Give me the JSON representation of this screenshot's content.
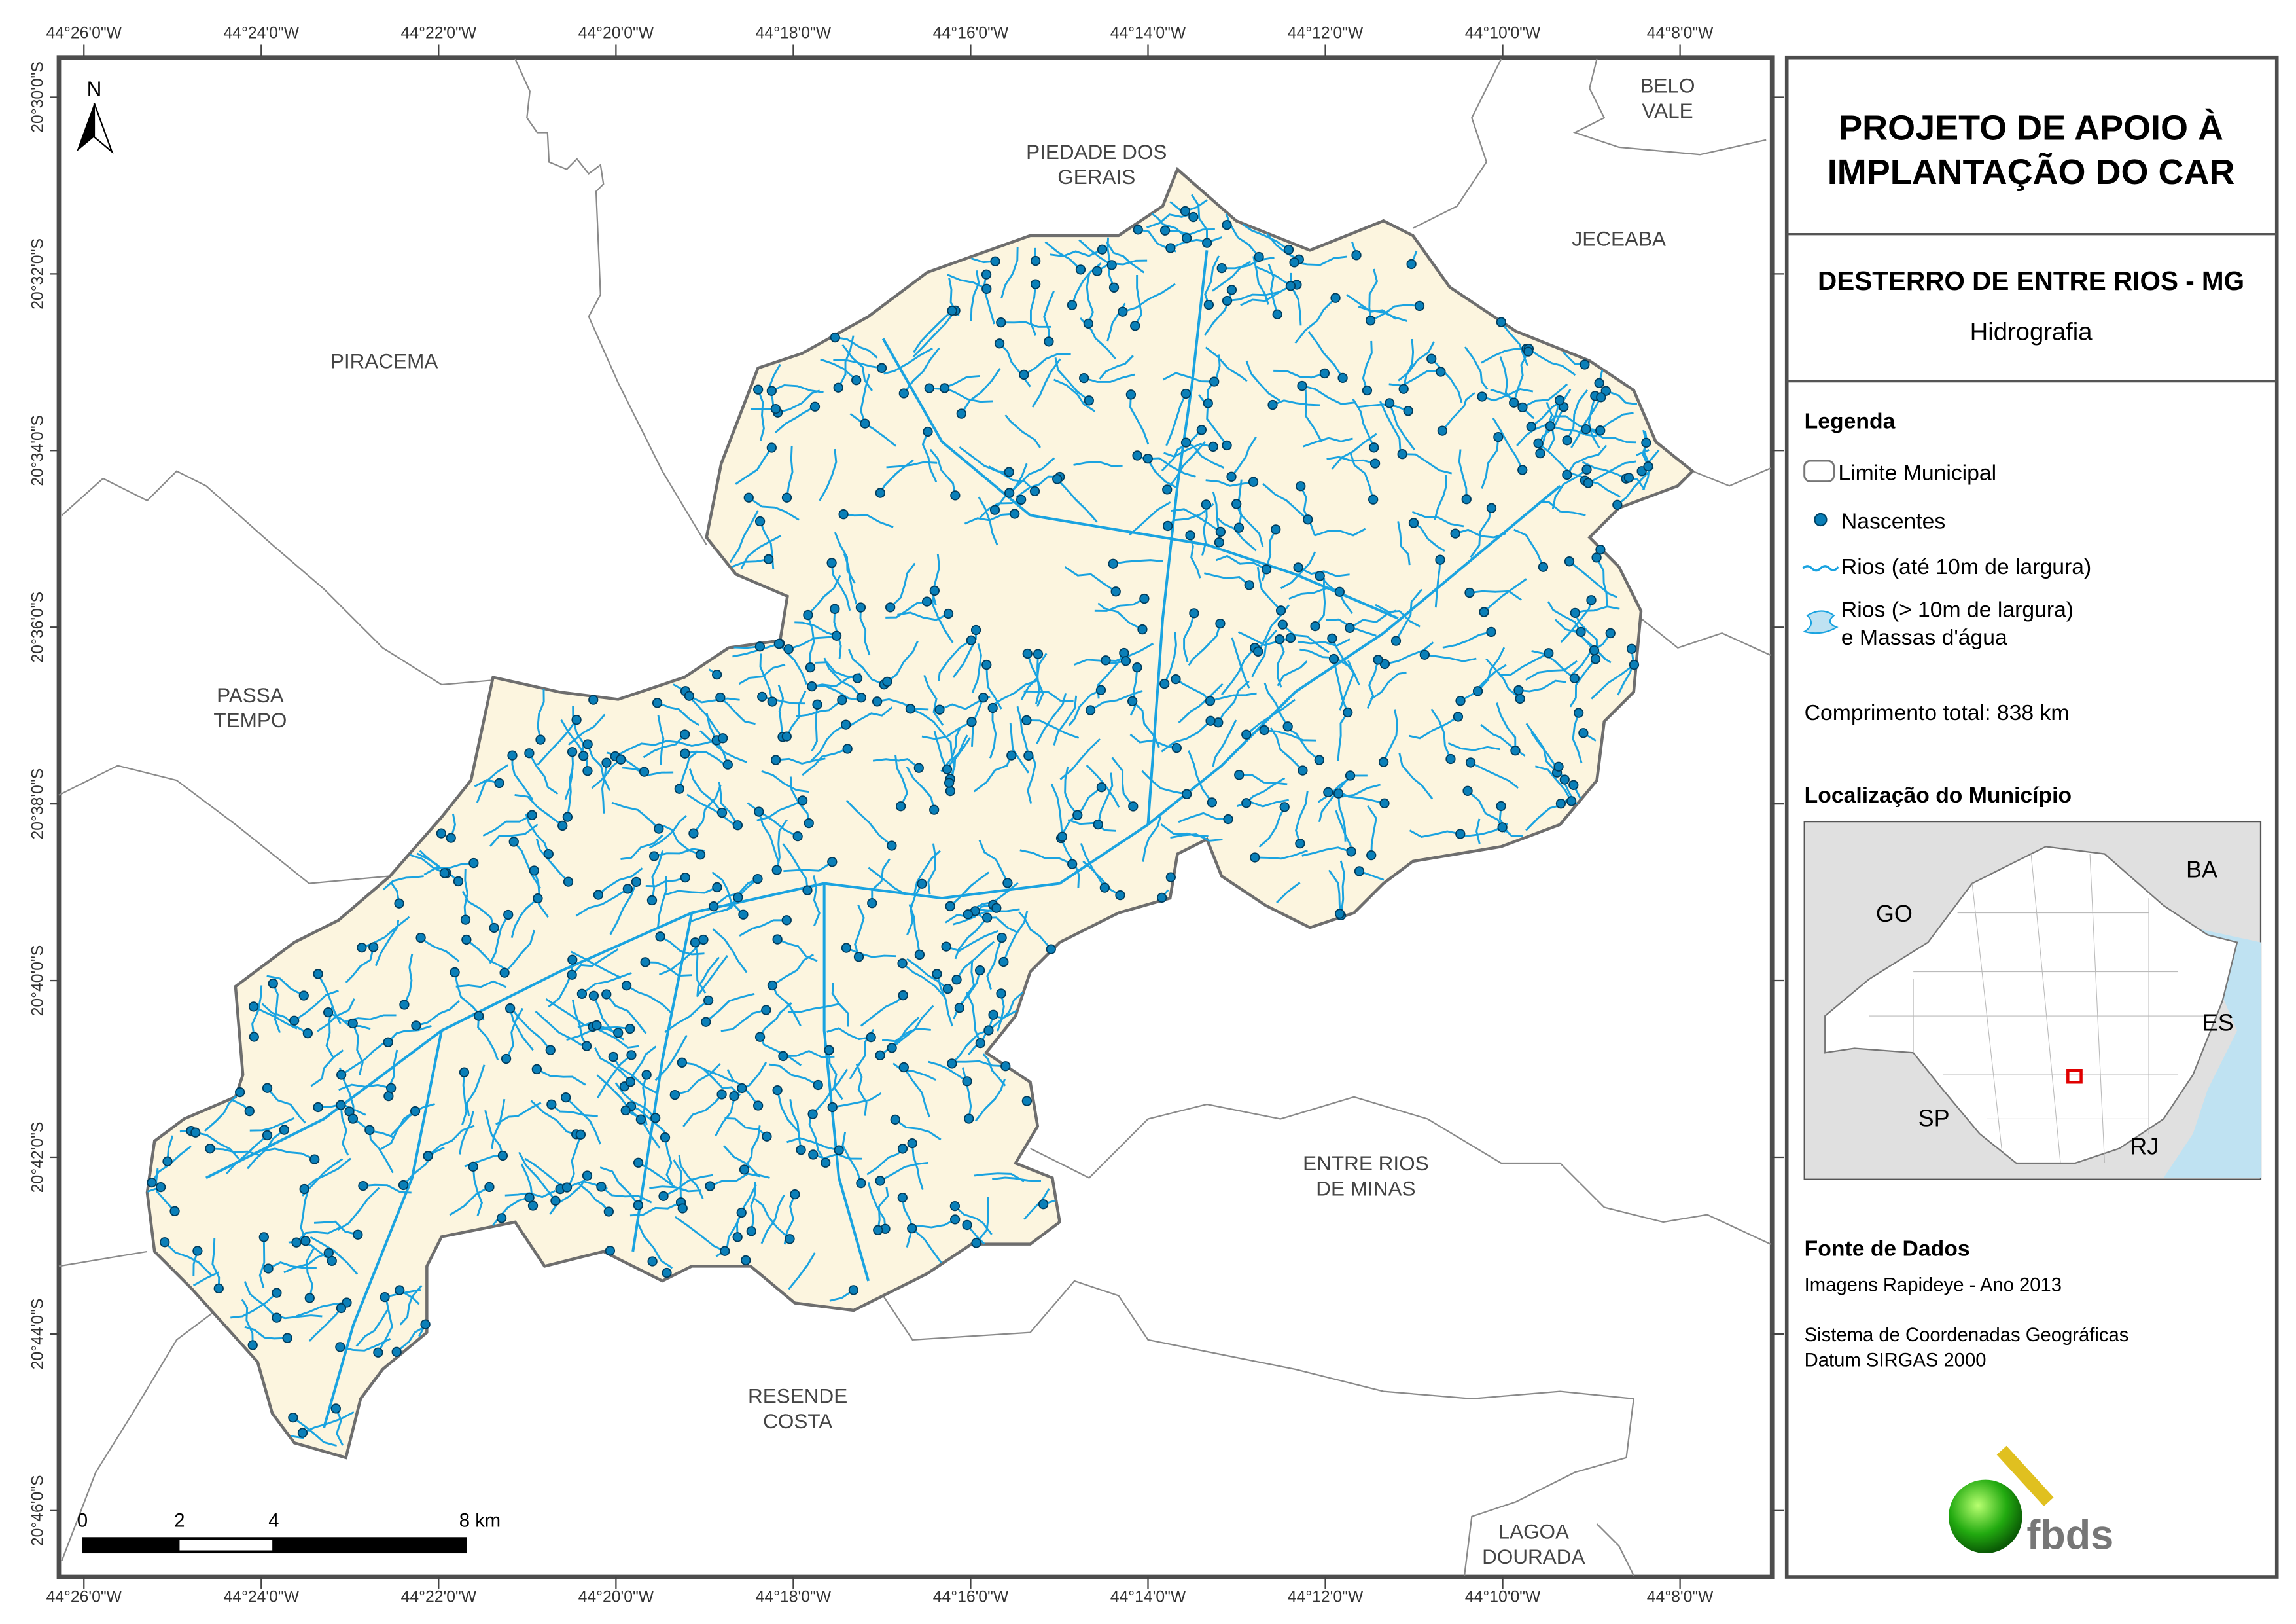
{
  "title": "PROJETO DE APOIO À IMPLANTAÇÃO DO CAR",
  "title_lines": [
    "PROJETO DE APOIO À",
    "IMPLANTAÇÃO DO CAR"
  ],
  "municipality": "DESTERRO DE ENTRE RIOS - MG",
  "theme": "Hidrografia",
  "legend": {
    "heading": "Legenda",
    "items": [
      {
        "icon": "boundary-outline-icon",
        "label": "Limite Municipal"
      },
      {
        "icon": "spring-dot-icon",
        "label": "Nascentes"
      },
      {
        "icon": "river-line-icon",
        "label": "Rios (até 10m de largura)"
      },
      {
        "icon": "water-body-icon",
        "label": "Rios (> 10m de largura)",
        "label2": "e Massas d'água"
      }
    ],
    "total_length": "Comprimento total: 838 km"
  },
  "location": {
    "heading": "Localização do Município",
    "labels": [
      "BA",
      "GO",
      "ES",
      "SP",
      "RJ"
    ]
  },
  "sources": {
    "heading": "Fonte de Dados",
    "line1": "Imagens Rapideye - Ano 2013",
    "line2": "Sistema de Coordenadas Geográficas",
    "line3": "Datum SIRGAS 2000"
  },
  "logo_text": "fbds",
  "north_label": "N",
  "scale": {
    "labels": [
      "0",
      "2",
      "4",
      "8 km"
    ]
  },
  "longitudes": [
    "44°26'0\"W",
    "44°24'0\"W",
    "44°22'0\"W",
    "44°20'0\"W",
    "44°18'0\"W",
    "44°16'0\"W",
    "44°14'0\"W",
    "44°12'0\"W",
    "44°10'0\"W",
    "44°8'0\"W"
  ],
  "latitudes": [
    "20°30'0\"S",
    "20°32'0\"S",
    "20°34'0\"S",
    "20°36'0\"S",
    "20°38'0\"S",
    "20°40'0\"S",
    "20°42'0\"S",
    "20°44'0\"S",
    "20°46'0\"S"
  ],
  "places": [
    {
      "l1": "BELO",
      "l2": "VALE"
    },
    {
      "l1": "PIEDADE DOS",
      "l2": "GERAIS"
    },
    {
      "l1": "JECEABA",
      "l2": ""
    },
    {
      "l1": "PIRACEMA",
      "l2": ""
    },
    {
      "l1": "PASSA",
      "l2": "TEMPO"
    },
    {
      "l1": "ENTRE RIOS",
      "l2": "DE MINAS"
    },
    {
      "l1": "RESENDE",
      "l2": "COSTA"
    },
    {
      "l1": "LAGOA",
      "l2": "DOURADA"
    }
  ],
  "colors": {
    "municipality_fill": "#fcf5df",
    "river": "#1aa3e0",
    "spring": "#0a7fb8",
    "boundary": "#6e6e6e",
    "frame": "#4d4d4d",
    "inset_bg": "#e0e0e0",
    "ocean": "#bfe2f2",
    "locator": "#e00000"
  }
}
